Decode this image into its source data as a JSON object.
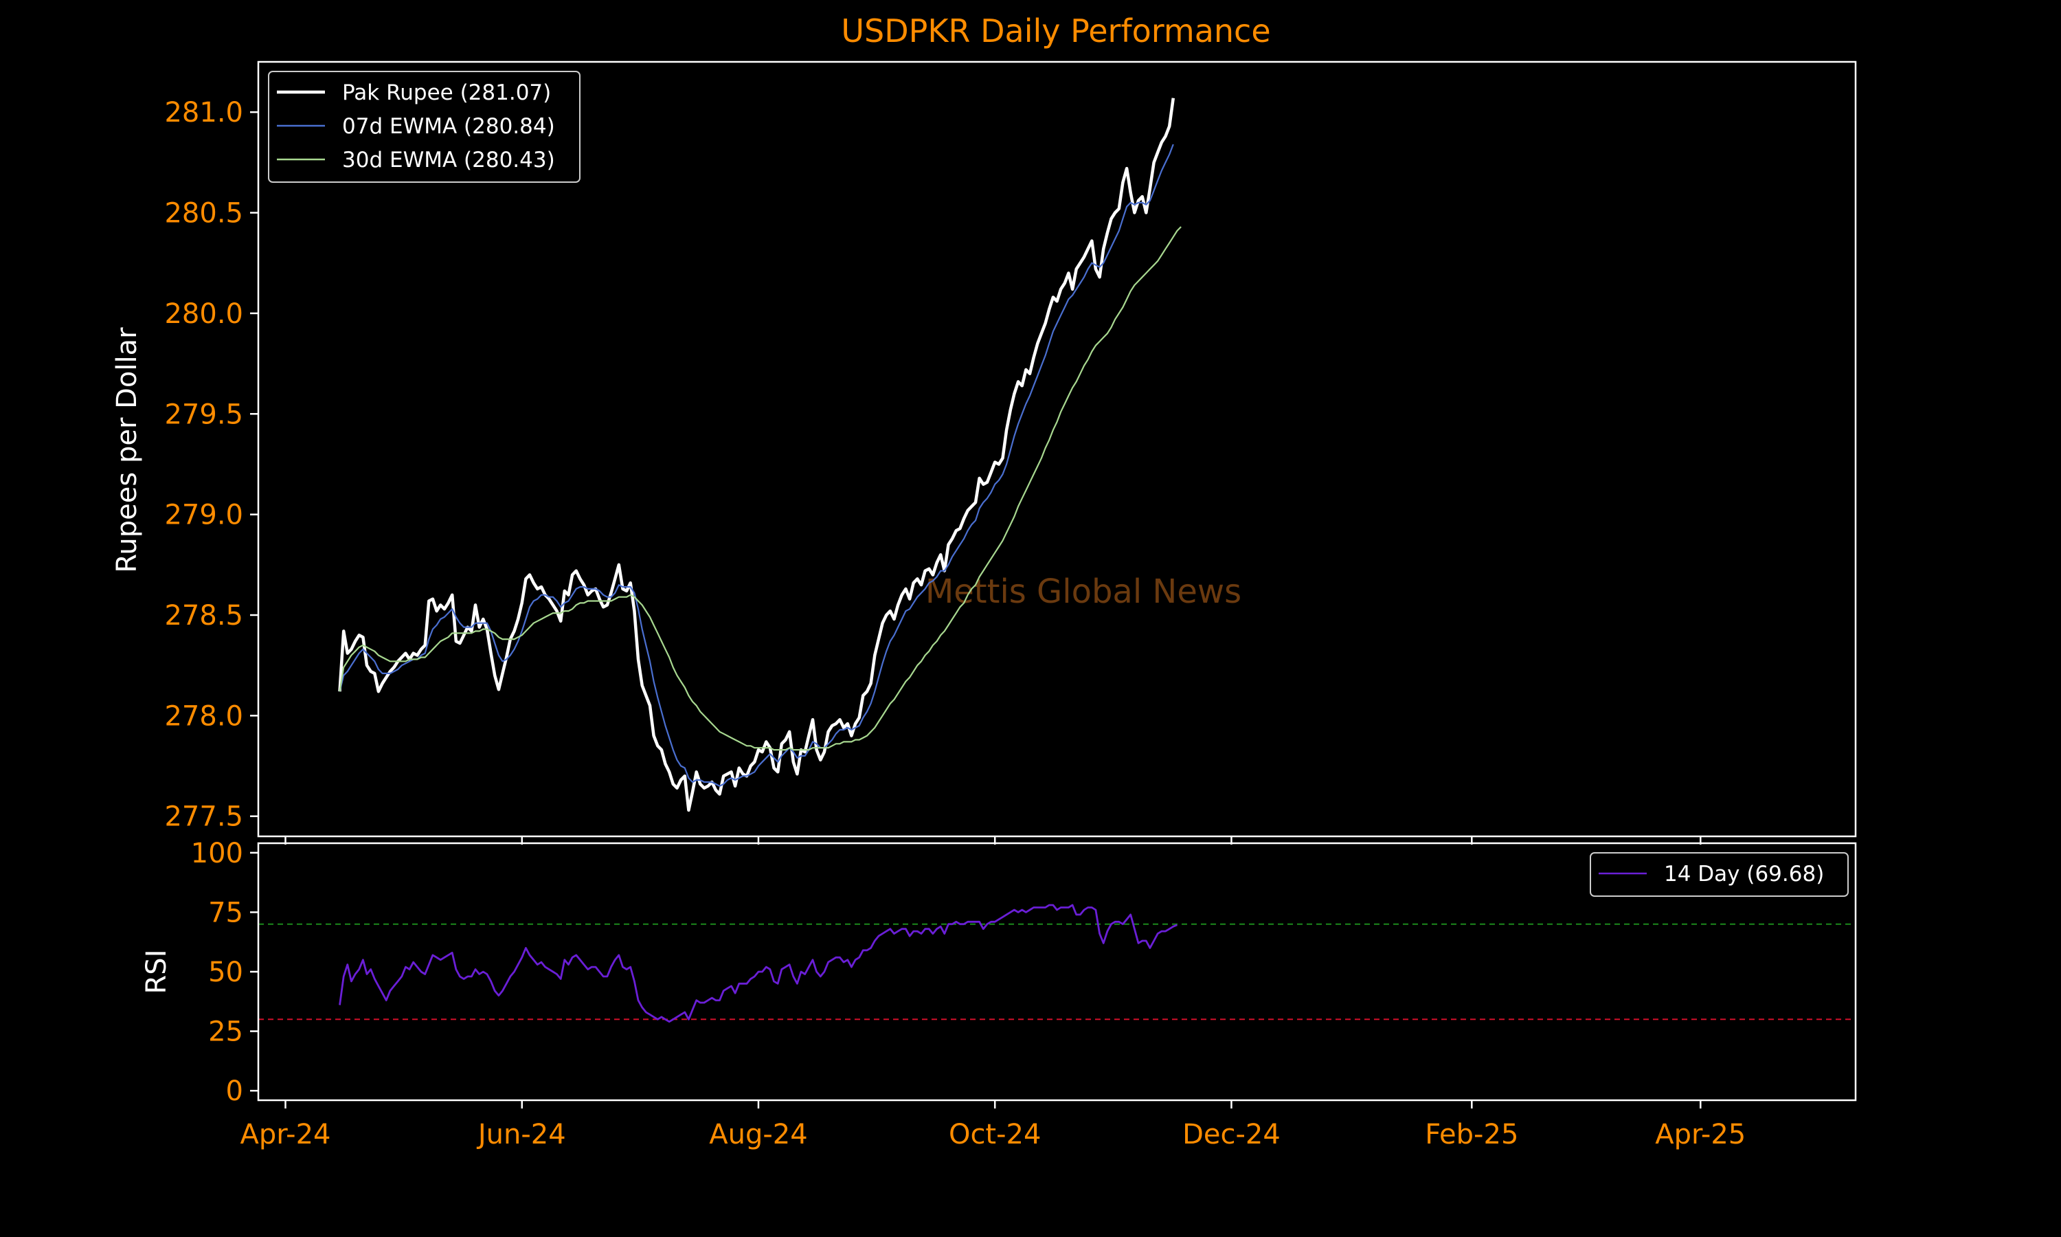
{
  "chart_data": {
    "type": "line",
    "title": "USDPKR Daily Performance",
    "watermark": "Mettis Global News",
    "x_ticks": [
      "Apr-24",
      "Jun-24",
      "Aug-24",
      "Oct-24",
      "Dec-24",
      "Feb-25",
      "Apr-25"
    ],
    "x_tick_dates": [
      "2024-04-01",
      "2024-06-01",
      "2024-08-01",
      "2024-10-01",
      "2024-12-01",
      "2025-02-01",
      "2025-04-01"
    ],
    "x_range": [
      "2024-03-25",
      "2025-05-11"
    ],
    "x_start": "2024-04-15",
    "x_step_days": 1,
    "price_panel": {
      "ylabel": "Rupees per Dollar",
      "ylim": [
        277.4,
        281.25
      ],
      "y_ticks": [
        277.5,
        278.0,
        278.5,
        279.0,
        279.5,
        280.0,
        280.5,
        281.0
      ],
      "y_tick_labels": [
        "277.5",
        "278.0",
        "278.5",
        "279.0",
        "279.5",
        "280.0",
        "280.5",
        "281.0"
      ],
      "series": [
        {
          "name": "Pak Rupee (281.07)",
          "color": "#ffffff",
          "values": [
            278.12,
            278.42,
            278.31,
            278.33,
            278.37,
            278.4,
            278.39,
            278.25,
            278.22,
            278.21,
            278.12,
            278.16,
            278.19,
            278.22,
            278.24,
            278.27,
            278.29,
            278.31,
            278.28,
            278.31,
            278.3,
            278.33,
            278.35,
            278.57,
            278.58,
            278.52,
            278.55,
            278.53,
            278.56,
            278.6,
            278.37,
            278.36,
            278.4,
            278.44,
            278.42,
            278.55,
            278.44,
            278.48,
            278.43,
            278.31,
            278.2,
            278.13,
            278.21,
            278.29,
            278.38,
            278.42,
            278.48,
            278.56,
            278.68,
            278.7,
            278.66,
            278.63,
            278.64,
            278.6,
            278.58,
            278.55,
            278.52,
            278.47,
            278.62,
            278.6,
            278.7,
            278.72,
            278.68,
            278.65,
            278.6,
            278.62,
            278.63,
            278.58,
            278.54,
            278.55,
            278.61,
            278.68,
            278.75,
            278.63,
            278.62,
            278.66,
            278.52,
            278.28,
            278.15,
            278.1,
            278.05,
            277.9,
            277.85,
            277.83,
            277.76,
            277.72,
            277.66,
            277.64,
            277.68,
            277.7,
            277.53,
            277.62,
            277.72,
            277.66,
            277.64,
            277.65,
            277.67,
            277.63,
            277.61,
            277.7,
            277.71,
            277.72,
            277.65,
            277.74,
            277.71,
            277.7,
            277.75,
            277.77,
            277.83,
            277.82,
            277.87,
            277.84,
            277.74,
            277.72,
            277.86,
            277.88,
            277.92,
            277.77,
            277.71,
            277.83,
            277.82,
            277.9,
            277.98,
            277.83,
            277.78,
            277.82,
            277.92,
            277.95,
            277.96,
            277.98,
            277.94,
            277.96,
            277.9,
            277.96,
            277.99,
            278.1,
            278.12,
            278.16,
            278.3,
            278.38,
            278.46,
            278.5,
            278.52,
            278.48,
            278.55,
            278.6,
            278.63,
            278.58,
            278.66,
            278.68,
            278.65,
            278.72,
            278.73,
            278.7,
            278.76,
            278.8,
            278.72,
            278.85,
            278.88,
            278.92,
            278.93,
            278.98,
            279.02,
            279.04,
            279.06,
            279.18,
            279.15,
            279.16,
            279.21,
            279.26,
            279.25,
            279.28,
            279.42,
            279.52,
            279.6,
            279.66,
            279.64,
            279.72,
            279.7,
            279.78,
            279.85,
            279.9,
            279.95,
            280.02,
            280.08,
            280.06,
            280.12,
            280.15,
            280.2,
            280.12,
            280.22,
            280.25,
            280.28,
            280.32,
            280.36,
            280.22,
            280.18,
            280.32,
            280.4,
            280.47,
            280.5,
            280.52,
            280.65,
            280.72,
            280.6,
            280.5,
            280.56,
            280.58,
            280.5,
            280.62,
            280.75,
            280.8,
            280.85,
            280.88,
            280.93,
            281.07
          ]
        },
        {
          "name": "07d EWMA (280.84)",
          "color": "#4a6fd0",
          "values": [
            278.12,
            278.2,
            278.22,
            278.25,
            278.28,
            278.31,
            278.33,
            278.31,
            278.29,
            278.27,
            278.23,
            278.21,
            278.21,
            278.21,
            278.22,
            278.23,
            278.25,
            278.26,
            278.27,
            278.28,
            278.28,
            278.3,
            278.31,
            278.38,
            278.43,
            278.45,
            278.48,
            278.49,
            278.51,
            278.53,
            278.49,
            278.46,
            278.44,
            278.44,
            278.44,
            278.46,
            278.46,
            278.46,
            278.46,
            278.42,
            278.36,
            278.3,
            278.27,
            278.28,
            278.3,
            278.33,
            278.37,
            278.42,
            278.48,
            278.54,
            278.57,
            278.58,
            278.6,
            278.6,
            278.59,
            278.59,
            278.57,
            278.54,
            278.56,
            278.57,
            278.6,
            278.63,
            278.64,
            278.64,
            278.63,
            278.63,
            278.63,
            278.62,
            278.6,
            278.59,
            278.59,
            278.61,
            278.65,
            278.64,
            278.64,
            278.64,
            278.61,
            278.53,
            278.43,
            278.35,
            278.27,
            278.17,
            278.09,
            278.02,
            277.95,
            277.89,
            277.83,
            277.78,
            277.75,
            277.74,
            277.69,
            277.67,
            277.68,
            277.68,
            277.67,
            277.67,
            277.67,
            277.66,
            277.65,
            277.66,
            277.68,
            277.69,
            277.68,
            277.69,
            277.7,
            277.7,
            277.71,
            277.72,
            277.75,
            277.77,
            277.79,
            277.81,
            277.79,
            277.77,
            277.8,
            277.82,
            277.84,
            277.82,
            277.79,
            277.8,
            277.8,
            277.83,
            277.87,
            277.86,
            277.84,
            277.84,
            277.86,
            277.88,
            277.91,
            277.93,
            277.93,
            277.94,
            277.93,
            277.94,
            277.95,
            277.99,
            278.02,
            278.06,
            278.12,
            278.19,
            278.26,
            278.32,
            278.37,
            278.4,
            278.44,
            278.48,
            278.52,
            278.53,
            278.56,
            278.59,
            278.61,
            278.63,
            278.66,
            278.67,
            278.69,
            278.72,
            278.72,
            278.75,
            278.79,
            278.82,
            278.85,
            278.88,
            278.92,
            278.95,
            278.97,
            279.03,
            279.06,
            279.08,
            279.11,
            279.15,
            279.17,
            279.2,
            279.25,
            279.32,
            279.39,
            279.45,
            279.5,
            279.55,
            279.59,
            279.64,
            279.69,
            279.74,
            279.79,
            279.85,
            279.91,
            279.95,
            279.99,
            280.03,
            280.07,
            280.09,
            280.12,
            280.15,
            280.18,
            280.22,
            280.25,
            280.24,
            280.23,
            280.25,
            280.29,
            280.33,
            280.37,
            280.41,
            280.47,
            280.53,
            280.55,
            280.54,
            280.55,
            280.55,
            280.54,
            280.56,
            280.61,
            280.66,
            280.71,
            280.75,
            280.79,
            280.84
          ]
        },
        {
          "name": "30d EWMA (280.43)",
          "color": "#a8d890",
          "values": [
            278.12,
            278.24,
            278.27,
            278.3,
            278.32,
            278.34,
            278.35,
            278.34,
            278.33,
            278.32,
            278.3,
            278.29,
            278.28,
            278.27,
            278.27,
            278.27,
            278.27,
            278.27,
            278.28,
            278.28,
            278.28,
            278.29,
            278.29,
            278.31,
            278.33,
            278.35,
            278.37,
            278.38,
            278.39,
            278.41,
            278.41,
            278.41,
            278.41,
            278.41,
            278.41,
            278.42,
            278.42,
            278.43,
            278.43,
            278.42,
            278.41,
            278.39,
            278.38,
            278.38,
            278.38,
            278.38,
            278.39,
            278.4,
            278.42,
            278.44,
            278.46,
            278.47,
            278.48,
            278.49,
            278.5,
            278.51,
            278.51,
            278.51,
            278.52,
            278.52,
            278.53,
            278.55,
            278.56,
            278.56,
            278.57,
            278.57,
            278.57,
            278.57,
            278.57,
            278.57,
            278.57,
            278.58,
            278.59,
            278.59,
            278.59,
            278.6,
            278.59,
            278.57,
            278.55,
            278.52,
            278.49,
            278.45,
            278.41,
            278.37,
            278.33,
            278.29,
            278.24,
            278.2,
            278.17,
            278.14,
            278.1,
            278.07,
            278.05,
            278.02,
            278.0,
            277.98,
            277.96,
            277.94,
            277.92,
            277.91,
            277.9,
            277.89,
            277.88,
            277.87,
            277.86,
            277.85,
            277.85,
            277.84,
            277.84,
            277.84,
            277.84,
            277.84,
            277.83,
            277.83,
            277.83,
            277.83,
            277.84,
            277.83,
            277.83,
            277.83,
            277.83,
            277.83,
            277.84,
            277.84,
            277.84,
            277.84,
            277.84,
            277.85,
            277.86,
            277.86,
            277.87,
            277.87,
            277.87,
            277.88,
            277.88,
            277.89,
            277.9,
            277.92,
            277.94,
            277.97,
            278.0,
            278.03,
            278.06,
            278.08,
            278.11,
            278.14,
            278.17,
            278.19,
            278.22,
            278.25,
            278.27,
            278.3,
            278.32,
            278.35,
            278.37,
            278.4,
            278.42,
            278.45,
            278.48,
            278.51,
            278.54,
            278.56,
            278.6,
            278.63,
            278.65,
            278.69,
            278.72,
            278.75,
            278.78,
            278.81,
            278.84,
            278.87,
            278.91,
            278.95,
            278.99,
            279.04,
            279.08,
            279.12,
            279.16,
            279.2,
            279.24,
            279.28,
            279.33,
            279.37,
            279.42,
            279.46,
            279.51,
            279.55,
            279.59,
            279.63,
            279.66,
            279.7,
            279.74,
            279.77,
            279.81,
            279.84,
            279.86,
            279.88,
            279.9,
            279.93,
            279.97,
            280.0,
            280.03,
            280.07,
            280.11,
            280.14,
            280.16,
            280.18,
            280.2,
            280.22,
            280.24,
            280.26,
            280.29,
            280.32,
            280.35,
            280.38,
            280.41,
            280.43
          ]
        }
      ],
      "legend_position": "top-left"
    },
    "rsi_panel": {
      "ylabel": "RSI",
      "ylim": [
        -4,
        104
      ],
      "y_ticks": [
        0,
        25,
        50,
        75,
        100
      ],
      "y_tick_labels": [
        "0",
        "25",
        "50",
        "75",
        "100"
      ],
      "reference_lines": [
        {
          "value": 70,
          "color": "#1c8a1c"
        },
        {
          "value": 30,
          "color": "#d0102a"
        }
      ],
      "series": [
        {
          "name": "14 Day (69.68)",
          "color": "#6a1fd6",
          "values": [
            36,
            48,
            53,
            46,
            49,
            51,
            55,
            49,
            51,
            47,
            44,
            41,
            38,
            42,
            44,
            46,
            48,
            52,
            51,
            54,
            52,
            50,
            49,
            53,
            57,
            56,
            55,
            56,
            57,
            58,
            51,
            48,
            47,
            48,
            48,
            51,
            49,
            50,
            49,
            46,
            42,
            40,
            42,
            45,
            48,
            50,
            53,
            56,
            60,
            57,
            55,
            53,
            54,
            52,
            51,
            50,
            49,
            47,
            55,
            53,
            56,
            57,
            55,
            53,
            51,
            52,
            52,
            50,
            48,
            48,
            52,
            55,
            57,
            52,
            51,
            52,
            46,
            38,
            35,
            33,
            32,
            31,
            30,
            31,
            30,
            29,
            30,
            31,
            32,
            33,
            30,
            34,
            38,
            37,
            37,
            38,
            39,
            38,
            38,
            42,
            43,
            44,
            41,
            45,
            45,
            45,
            47,
            48,
            50,
            50,
            52,
            51,
            46,
            45,
            51,
            52,
            53,
            48,
            45,
            50,
            49,
            52,
            55,
            50,
            48,
            50,
            54,
            55,
            56,
            56,
            54,
            55,
            52,
            55,
            56,
            59,
            59,
            60,
            63,
            65,
            66,
            67,
            68,
            66,
            67,
            68,
            68,
            65,
            67,
            67,
            66,
            68,
            68,
            66,
            68,
            69,
            66,
            70,
            70,
            71,
            70,
            70,
            71,
            71,
            71,
            71,
            68,
            70,
            71,
            71,
            72,
            73,
            74,
            75,
            76,
            75,
            76,
            75,
            76,
            77,
            77,
            77,
            77,
            78,
            78,
            76,
            77,
            77,
            77,
            78,
            74,
            74,
            76,
            77,
            77,
            76,
            66,
            62,
            67,
            70,
            71,
            71,
            70,
            72,
            74,
            68,
            62,
            63,
            63,
            60,
            63,
            66,
            67,
            67,
            68,
            69,
            69.68
          ]
        }
      ],
      "legend_position": "top-right"
    }
  }
}
